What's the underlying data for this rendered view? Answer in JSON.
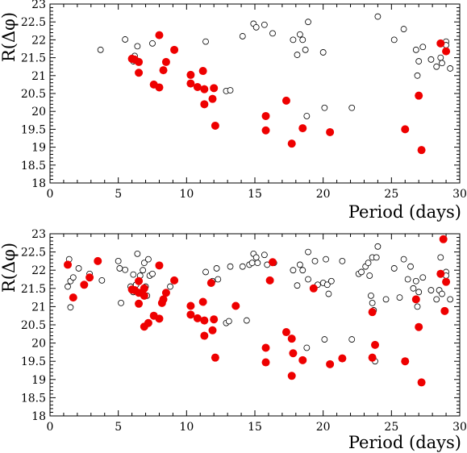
{
  "chart_data": [
    {
      "type": "scatter",
      "xlabel": "Period (days)",
      "ylabel": "R(Δφ)",
      "xlim": [
        0,
        30
      ],
      "ylim": [
        18,
        23
      ],
      "xticks": [
        "0",
        "5",
        "10",
        "15",
        "20",
        "25",
        "30"
      ],
      "yticks": [
        "18",
        "18.5",
        "19",
        "19.5",
        "20",
        "20.5",
        "21",
        "21.5",
        "22",
        "22.5",
        "23"
      ],
      "colors": {
        "filled": "#ee0000",
        "open": "#000000"
      },
      "series": [
        {
          "marker": "open-circle",
          "points": [
            [
              3.7,
              21.72
            ],
            [
              5.5,
              22.01
            ],
            [
              6.1,
              21.4
            ],
            [
              6.2,
              21.55
            ],
            [
              6.4,
              21.82
            ],
            [
              7.5,
              21.9
            ],
            [
              11.4,
              21.95
            ],
            [
              12.9,
              20.57
            ],
            [
              13.2,
              20.59
            ],
            [
              14.1,
              22.1
            ],
            [
              14.9,
              22.45
            ],
            [
              15.1,
              22.35
            ],
            [
              15.7,
              22.42
            ],
            [
              16.3,
              22.18
            ],
            [
              17.8,
              22.0
            ],
            [
              18.1,
              21.58
            ],
            [
              18.3,
              22.15
            ],
            [
              18.5,
              22.0
            ],
            [
              18.7,
              21.72
            ],
            [
              18.9,
              22.5
            ],
            [
              18.8,
              19.87
            ],
            [
              20.0,
              21.65
            ],
            [
              20.1,
              20.1
            ],
            [
              22.1,
              20.1
            ],
            [
              24.0,
              22.65
            ],
            [
              25.2,
              22.0
            ],
            [
              25.9,
              22.3
            ],
            [
              26.8,
              21.72
            ],
            [
              26.9,
              21.0
            ],
            [
              27.0,
              21.4
            ],
            [
              27.3,
              21.8
            ],
            [
              27.9,
              21.45
            ],
            [
              28.3,
              21.25
            ],
            [
              28.6,
              21.5
            ],
            [
              28.7,
              21.35
            ],
            [
              29.0,
              21.95
            ],
            [
              29.0,
              21.85
            ],
            [
              29.3,
              21.2
            ]
          ]
        },
        {
          "marker": "filled-circle",
          "points": [
            [
              6.0,
              21.47
            ],
            [
              6.2,
              21.45
            ],
            [
              6.5,
              21.38
            ],
            [
              6.5,
              21.08
            ],
            [
              7.6,
              20.75
            ],
            [
              8.0,
              20.67
            ],
            [
              8.0,
              22.13
            ],
            [
              8.3,
              21.15
            ],
            [
              8.5,
              21.38
            ],
            [
              9.1,
              21.72
            ],
            [
              10.3,
              21.02
            ],
            [
              10.3,
              20.78
            ],
            [
              10.8,
              20.68
            ],
            [
              11.2,
              21.13
            ],
            [
              11.3,
              20.62
            ],
            [
              11.3,
              20.2
            ],
            [
              11.9,
              20.35
            ],
            [
              12.0,
              20.65
            ],
            [
              12.1,
              19.6
            ],
            [
              15.8,
              19.87
            ],
            [
              15.8,
              19.47
            ],
            [
              17.3,
              20.3
            ],
            [
              17.7,
              19.1
            ],
            [
              18.5,
              19.53
            ],
            [
              20.5,
              19.42
            ],
            [
              26.0,
              19.5
            ],
            [
              27.0,
              20.44
            ],
            [
              27.2,
              18.92
            ],
            [
              28.6,
              21.9
            ],
            [
              29.0,
              21.68
            ]
          ]
        }
      ]
    },
    {
      "type": "scatter",
      "xlabel": "Period (days)",
      "ylabel": "R(Δφ)",
      "xlim": [
        0,
        30
      ],
      "ylim": [
        18,
        23
      ],
      "xticks": [
        "0",
        "5",
        "10",
        "15",
        "20",
        "25",
        "30"
      ],
      "yticks": [
        "18",
        "18.5",
        "19",
        "19.5",
        "20",
        "20.5",
        "21",
        "21.5",
        "22",
        "22.5",
        "23"
      ],
      "colors": {
        "filled": "#ee0000",
        "open": "#000000"
      },
      "series": [
        {
          "marker": "open-circle",
          "points": [
            [
              1.3,
              21.55
            ],
            [
              1.4,
              22.3
            ],
            [
              1.5,
              21.7
            ],
            [
              1.5,
              20.98
            ],
            [
              1.7,
              21.8
            ],
            [
              2.1,
              22.05
            ],
            [
              2.9,
              21.9
            ],
            [
              3.8,
              21.72
            ],
            [
              5.0,
              22.25
            ],
            [
              5.1,
              22.05
            ],
            [
              5.2,
              21.1
            ],
            [
              5.5,
              22.01
            ],
            [
              5.9,
              21.55
            ],
            [
              6.1,
              21.4
            ],
            [
              6.1,
              21.88
            ],
            [
              6.3,
              21.6
            ],
            [
              6.4,
              22.45
            ],
            [
              6.6,
              21.85
            ],
            [
              6.8,
              22.0
            ],
            [
              6.9,
              22.2
            ],
            [
              7.0,
              21.55
            ],
            [
              7.1,
              21.3
            ],
            [
              7.2,
              22.3
            ],
            [
              7.3,
              21.85
            ],
            [
              7.5,
              21.9
            ],
            [
              8.8,
              21.55
            ],
            [
              11.4,
              21.95
            ],
            [
              11.9,
              21.7
            ],
            [
              12.2,
              22.05
            ],
            [
              12.3,
              21.75
            ],
            [
              12.9,
              20.55
            ],
            [
              13.1,
              20.6
            ],
            [
              13.2,
              22.1
            ],
            [
              14.1,
              22.1
            ],
            [
              14.4,
              20.62
            ],
            [
              14.6,
              22.15
            ],
            [
              14.8,
              22.2
            ],
            [
              14.9,
              22.45
            ],
            [
              15.1,
              22.35
            ],
            [
              15.2,
              22.2
            ],
            [
              15.7,
              22.42
            ],
            [
              15.9,
              22.15
            ],
            [
              16.4,
              22.2
            ],
            [
              17.8,
              22.0
            ],
            [
              18.1,
              21.58
            ],
            [
              18.3,
              22.15
            ],
            [
              18.5,
              22.0
            ],
            [
              18.9,
              21.75
            ],
            [
              18.9,
              22.5
            ],
            [
              18.8,
              19.87
            ],
            [
              19.4,
              22.25
            ],
            [
              19.6,
              21.6
            ],
            [
              20.0,
              21.65
            ],
            [
              20.1,
              20.1
            ],
            [
              20.2,
              22.3
            ],
            [
              20.3,
              21.6
            ],
            [
              20.4,
              21.35
            ],
            [
              20.6,
              21.7
            ],
            [
              21.4,
              22.25
            ],
            [
              22.1,
              20.1
            ],
            [
              22.6,
              21.9
            ],
            [
              22.8,
              21.95
            ],
            [
              23.1,
              22.1
            ],
            [
              23.3,
              22.2
            ],
            [
              23.4,
              21.85
            ],
            [
              23.5,
              21.3
            ],
            [
              23.6,
              22.35
            ],
            [
              23.6,
              21.1
            ],
            [
              23.7,
              20.9
            ],
            [
              23.8,
              19.5
            ],
            [
              23.9,
              22.35
            ],
            [
              24.0,
              22.65
            ],
            [
              24.6,
              21.2
            ],
            [
              25.2,
              22.05
            ],
            [
              25.6,
              21.25
            ],
            [
              25.9,
              22.3
            ],
            [
              26.2,
              21.75
            ],
            [
              26.4,
              22.1
            ],
            [
              26.6,
              21.5
            ],
            [
              26.8,
              21.7
            ],
            [
              26.9,
              21.0
            ],
            [
              27.0,
              21.4
            ],
            [
              27.3,
              21.8
            ],
            [
              27.9,
              21.45
            ],
            [
              28.3,
              21.2
            ],
            [
              28.5,
              21.45
            ],
            [
              28.6,
              21.9
            ],
            [
              28.6,
              22.35
            ],
            [
              28.7,
              21.35
            ],
            [
              29.0,
              21.95
            ],
            [
              29.0,
              21.85
            ],
            [
              29.3,
              21.2
            ]
          ]
        },
        {
          "marker": "filled-circle",
          "points": [
            [
              1.3,
              22.15
            ],
            [
              1.7,
              21.25
            ],
            [
              2.5,
              21.6
            ],
            [
              2.9,
              21.8
            ],
            [
              3.5,
              22.25
            ],
            [
              6.0,
              21.47
            ],
            [
              6.2,
              21.45
            ],
            [
              6.5,
              21.7
            ],
            [
              6.5,
              21.38
            ],
            [
              6.5,
              21.08
            ],
            [
              6.9,
              21.5
            ],
            [
              6.9,
              21.3
            ],
            [
              6.9,
              20.45
            ],
            [
              7.2,
              20.55
            ],
            [
              7.6,
              20.75
            ],
            [
              8.0,
              20.67
            ],
            [
              8.0,
              22.13
            ],
            [
              8.2,
              21.1
            ],
            [
              8.3,
              21.2
            ],
            [
              8.5,
              21.38
            ],
            [
              9.1,
              21.72
            ],
            [
              10.3,
              21.02
            ],
            [
              10.3,
              20.78
            ],
            [
              10.8,
              20.68
            ],
            [
              11.2,
              21.13
            ],
            [
              11.3,
              20.62
            ],
            [
              11.3,
              20.2
            ],
            [
              11.8,
              21.65
            ],
            [
              11.9,
              20.35
            ],
            [
              12.0,
              20.65
            ],
            [
              12.1,
              19.6
            ],
            [
              13.6,
              21.02
            ],
            [
              15.8,
              19.87
            ],
            [
              15.8,
              19.47
            ],
            [
              16.1,
              21.72
            ],
            [
              16.3,
              22.22
            ],
            [
              17.3,
              20.3
            ],
            [
              17.7,
              20.12
            ],
            [
              17.7,
              19.1
            ],
            [
              17.8,
              19.72
            ],
            [
              18.5,
              19.53
            ],
            [
              19.3,
              21.5
            ],
            [
              20.5,
              19.42
            ],
            [
              21.4,
              19.58
            ],
            [
              23.6,
              19.6
            ],
            [
              23.6,
              20.85
            ],
            [
              23.8,
              19.95
            ],
            [
              26.0,
              19.5
            ],
            [
              26.8,
              21.2
            ],
            [
              27.0,
              20.44
            ],
            [
              27.2,
              18.92
            ],
            [
              28.6,
              21.9
            ],
            [
              28.8,
              22.85
            ],
            [
              28.9,
              20.88
            ],
            [
              29.0,
              21.68
            ]
          ]
        }
      ]
    }
  ]
}
